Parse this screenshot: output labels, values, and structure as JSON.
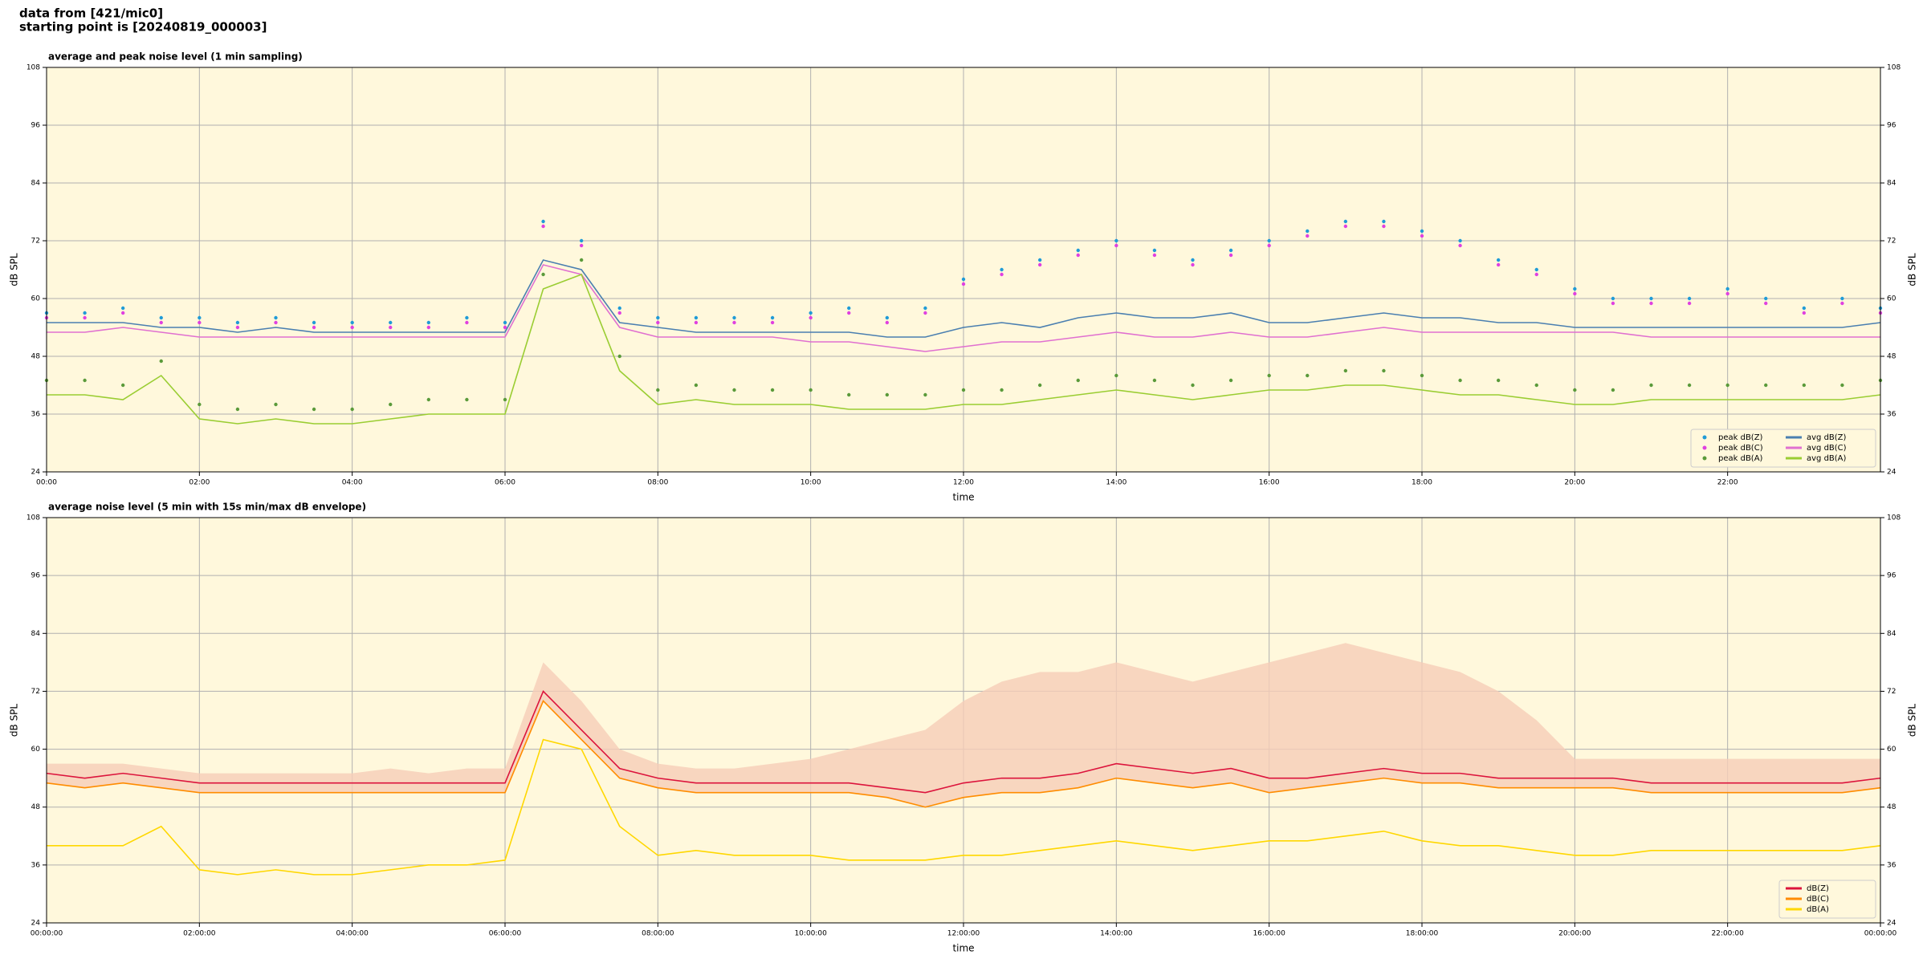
{
  "header": {
    "lines": [
      "data from [421/mic0]",
      "starting point is [20240819_000003]"
    ]
  },
  "chart_data": [
    {
      "type": "line",
      "title": "average and peak noise level (1 min sampling)",
      "x_label": "time",
      "y_label": "dB SPL",
      "xlim": [
        0,
        24
      ],
      "xticks": [
        {
          "value": 0,
          "label": "00:00"
        },
        {
          "value": 2,
          "label": "02:00"
        },
        {
          "value": 4,
          "label": "04:00"
        },
        {
          "value": 6,
          "label": "06:00"
        },
        {
          "value": 8,
          "label": "08:00"
        },
        {
          "value": 10,
          "label": "10:00"
        },
        {
          "value": 12,
          "label": "12:00"
        },
        {
          "value": 14,
          "label": "14:00"
        },
        {
          "value": 16,
          "label": "16:00"
        },
        {
          "value": 18,
          "label": "18:00"
        },
        {
          "value": 20,
          "label": "20:00"
        },
        {
          "value": 22,
          "label": "22:00"
        }
      ],
      "ylim": [
        24,
        108
      ],
      "yticks": [
        24,
        36,
        48,
        60,
        72,
        84,
        96,
        108
      ],
      "grid": true,
      "legend": "lower right",
      "legend_columns": 2,
      "x": [
        0,
        0.5,
        1,
        1.5,
        2,
        2.5,
        3,
        3.5,
        4,
        4.5,
        5,
        5.5,
        6,
        6.5,
        7,
        7.5,
        8,
        8.5,
        9,
        9.5,
        10,
        10.5,
        11,
        11.5,
        12,
        12.5,
        13,
        13.5,
        14,
        14.5,
        15,
        15.5,
        16,
        16.5,
        17,
        17.5,
        18,
        18.5,
        19,
        19.5,
        20,
        20.5,
        21,
        21.5,
        22,
        22.5,
        23,
        23.5,
        24
      ],
      "series": [
        {
          "name": "peak dB(Z)",
          "mode": "markers",
          "color": "#1f9bd7",
          "values": [
            57,
            57,
            58,
            56,
            56,
            55,
            56,
            55,
            55,
            55,
            55,
            56,
            55,
            76,
            72,
            58,
            56,
            56,
            56,
            56,
            57,
            58,
            56,
            58,
            64,
            66,
            68,
            70,
            72,
            70,
            68,
            70,
            72,
            74,
            76,
            76,
            74,
            72,
            68,
            66,
            62,
            60,
            60,
            60,
            62,
            60,
            58,
            60,
            58
          ]
        },
        {
          "name": "peak dB(C)",
          "mode": "markers",
          "color": "#e040e0",
          "values": [
            56,
            56,
            57,
            55,
            55,
            54,
            55,
            54,
            54,
            54,
            54,
            55,
            54,
            75,
            71,
            57,
            55,
            55,
            55,
            55,
            56,
            57,
            55,
            57,
            63,
            65,
            67,
            69,
            71,
            69,
            67,
            69,
            71,
            73,
            75,
            75,
            73,
            71,
            67,
            65,
            61,
            59,
            59,
            59,
            61,
            59,
            57,
            59,
            57
          ]
        },
        {
          "name": "peak dB(A)",
          "mode": "markers",
          "color": "#5a9a3a",
          "values": [
            43,
            43,
            42,
            47,
            38,
            37,
            38,
            37,
            37,
            38,
            39,
            39,
            39,
            65,
            68,
            48,
            41,
            42,
            41,
            41,
            41,
            40,
            40,
            40,
            41,
            41,
            42,
            43,
            44,
            43,
            42,
            43,
            44,
            44,
            45,
            45,
            44,
            43,
            43,
            42,
            41,
            41,
            42,
            42,
            42,
            42,
            42,
            42,
            43
          ]
        },
        {
          "name": "avg dB(Z)",
          "mode": "lines",
          "color": "#4a7fb0",
          "values": [
            55,
            55,
            55,
            54,
            54,
            53,
            54,
            53,
            53,
            53,
            53,
            53,
            53,
            68,
            66,
            55,
            54,
            53,
            53,
            53,
            53,
            53,
            52,
            52,
            54,
            55,
            54,
            56,
            57,
            56,
            56,
            57,
            55,
            55,
            56,
            57,
            56,
            56,
            55,
            55,
            54,
            54,
            54,
            54,
            54,
            54,
            54,
            54,
            55
          ]
        },
        {
          "name": "avg dB(C)",
          "mode": "lines",
          "color": "#e070d0",
          "values": [
            53,
            53,
            54,
            53,
            52,
            52,
            52,
            52,
            52,
            52,
            52,
            52,
            52,
            67,
            65,
            54,
            52,
            52,
            52,
            52,
            51,
            51,
            50,
            49,
            50,
            51,
            51,
            52,
            53,
            52,
            52,
            53,
            52,
            52,
            53,
            54,
            53,
            53,
            53,
            53,
            53,
            53,
            52,
            52,
            52,
            52,
            52,
            52,
            52
          ]
        },
        {
          "name": "avg dB(A)",
          "mode": "lines",
          "color": "#9acd32",
          "values": [
            40,
            40,
            39,
            44,
            35,
            34,
            35,
            34,
            34,
            35,
            36,
            36,
            36,
            62,
            65,
            45,
            38,
            39,
            38,
            38,
            38,
            37,
            37,
            37,
            38,
            38,
            39,
            40,
            41,
            40,
            39,
            40,
            41,
            41,
            42,
            42,
            41,
            40,
            40,
            39,
            38,
            38,
            39,
            39,
            39,
            39,
            39,
            39,
            40
          ]
        }
      ]
    },
    {
      "type": "line",
      "title": "average noise level (5 min with 15s min/max dB envelope)",
      "x_label": "time",
      "y_label": "dB SPL",
      "xlim": [
        0,
        24
      ],
      "xticks": [
        {
          "value": 0,
          "label": "00:00:00"
        },
        {
          "value": 2,
          "label": "02:00:00"
        },
        {
          "value": 4,
          "label": "04:00:00"
        },
        {
          "value": 6,
          "label": "06:00:00"
        },
        {
          "value": 8,
          "label": "08:00:00"
        },
        {
          "value": 10,
          "label": "10:00:00"
        },
        {
          "value": 12,
          "label": "12:00:00"
        },
        {
          "value": 14,
          "label": "14:00:00"
        },
        {
          "value": 16,
          "label": "16:00:00"
        },
        {
          "value": 18,
          "label": "18:00:00"
        },
        {
          "value": 20,
          "label": "20:00:00"
        },
        {
          "value": 22,
          "label": "22:00:00"
        },
        {
          "value": 24,
          "label": "00:00:00"
        }
      ],
      "ylim": [
        24,
        108
      ],
      "yticks": [
        24,
        36,
        48,
        60,
        72,
        84,
        96,
        108
      ],
      "grid": true,
      "legend": "lower right",
      "legend_columns": 1,
      "x": [
        0,
        0.5,
        1,
        1.5,
        2,
        2.5,
        3,
        3.5,
        4,
        4.5,
        5,
        5.5,
        6,
        6.5,
        7,
        7.5,
        8,
        8.5,
        9,
        9.5,
        10,
        10.5,
        11,
        11.5,
        12,
        12.5,
        13,
        13.5,
        14,
        14.5,
        15,
        15.5,
        16,
        16.5,
        17,
        17.5,
        18,
        18.5,
        19,
        19.5,
        20,
        20.5,
        21,
        21.5,
        22,
        22.5,
        23,
        23.5,
        24
      ],
      "envelope": {
        "color": "#f6cdb8",
        "values": [
          57,
          57,
          57,
          56,
          55,
          55,
          55,
          55,
          55,
          56,
          55,
          56,
          56,
          78,
          70,
          60,
          57,
          56,
          56,
          57,
          58,
          60,
          62,
          64,
          70,
          74,
          76,
          76,
          78,
          76,
          74,
          76,
          78,
          80,
          82,
          80,
          78,
          76,
          72,
          66,
          58,
          58,
          58,
          58,
          58,
          58,
          58,
          58,
          58
        ]
      },
      "series": [
        {
          "name": "dB(Z)",
          "mode": "lines",
          "color": "#dc143c",
          "values": [
            55,
            54,
            55,
            54,
            53,
            53,
            53,
            53,
            53,
            53,
            53,
            53,
            53,
            72,
            64,
            56,
            54,
            53,
            53,
            53,
            53,
            53,
            52,
            51,
            53,
            54,
            54,
            55,
            57,
            56,
            55,
            56,
            54,
            54,
            55,
            56,
            55,
            55,
            54,
            54,
            54,
            54,
            53,
            53,
            53,
            53,
            53,
            53,
            54
          ]
        },
        {
          "name": "dB(C)",
          "mode": "lines",
          "color": "#ff8c00",
          "values": [
            53,
            52,
            53,
            52,
            51,
            51,
            51,
            51,
            51,
            51,
            51,
            51,
            51,
            70,
            62,
            54,
            52,
            51,
            51,
            51,
            51,
            51,
            50,
            48,
            50,
            51,
            51,
            52,
            54,
            53,
            52,
            53,
            51,
            52,
            53,
            54,
            53,
            53,
            52,
            52,
            52,
            52,
            51,
            51,
            51,
            51,
            51,
            51,
            52
          ]
        },
        {
          "name": "dB(A)",
          "mode": "lines",
          "color": "#ffd700",
          "values": [
            40,
            40,
            40,
            44,
            35,
            34,
            35,
            34,
            34,
            35,
            36,
            36,
            37,
            62,
            60,
            44,
            38,
            39,
            38,
            38,
            38,
            37,
            37,
            37,
            38,
            38,
            39,
            40,
            41,
            40,
            39,
            40,
            41,
            41,
            42,
            43,
            41,
            40,
            40,
            39,
            38,
            38,
            39,
            39,
            39,
            39,
            39,
            39,
            40
          ]
        }
      ]
    }
  ]
}
